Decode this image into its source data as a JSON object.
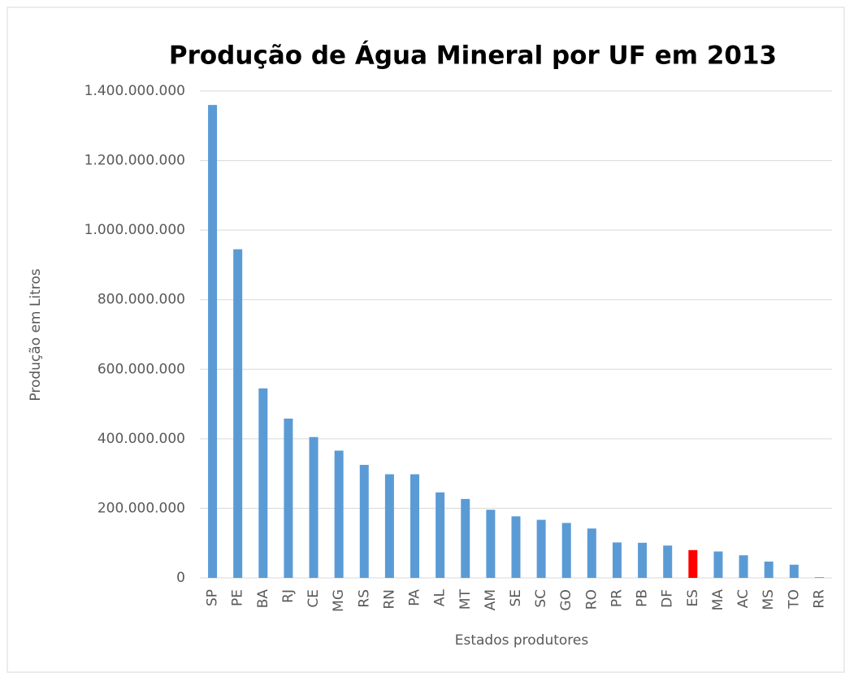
{
  "chart_data": {
    "type": "bar",
    "title": "Produção de Água Mineral por UF em 2013",
    "x_label": "Estados produtores",
    "y_label": "Produção em Litros",
    "categories": [
      "SP",
      "PE",
      "BA",
      "RJ",
      "CE",
      "MG",
      "RS",
      "RN",
      "PA",
      "AL",
      "MT",
      "AM",
      "SE",
      "SC",
      "GO",
      "RO",
      "PR",
      "PB",
      "DF",
      "ES",
      "MA",
      "AC",
      "MS",
      "TO",
      "RR"
    ],
    "values": [
      1360000000,
      945000000,
      545000000,
      458000000,
      405000000,
      366000000,
      325000000,
      298000000,
      298000000,
      246000000,
      227000000,
      196000000,
      177000000,
      167000000,
      158000000,
      142000000,
      102000000,
      101000000,
      93000000,
      80000000,
      76000000,
      65000000,
      47000000,
      38000000,
      2000000
    ],
    "color": "#5b9bd5",
    "highlight": {
      "category": "ES",
      "color": "#ff0000"
    },
    "ylim": [
      0,
      1400000000
    ],
    "yticks": [
      {
        "value": 0,
        "label": "0"
      },
      {
        "value": 200000000,
        "label": "200.000.000"
      },
      {
        "value": 400000000,
        "label": "400.000.000"
      },
      {
        "value": 600000000,
        "label": "600.000.000"
      },
      {
        "value": 800000000,
        "label": "800.000.000"
      },
      {
        "value": 1000000000,
        "label": "1.000.000.000"
      },
      {
        "value": 1200000000,
        "label": "1.200.000.000"
      },
      {
        "value": 1400000000,
        "label": "1.400.000.000"
      }
    ],
    "grid": true
  }
}
